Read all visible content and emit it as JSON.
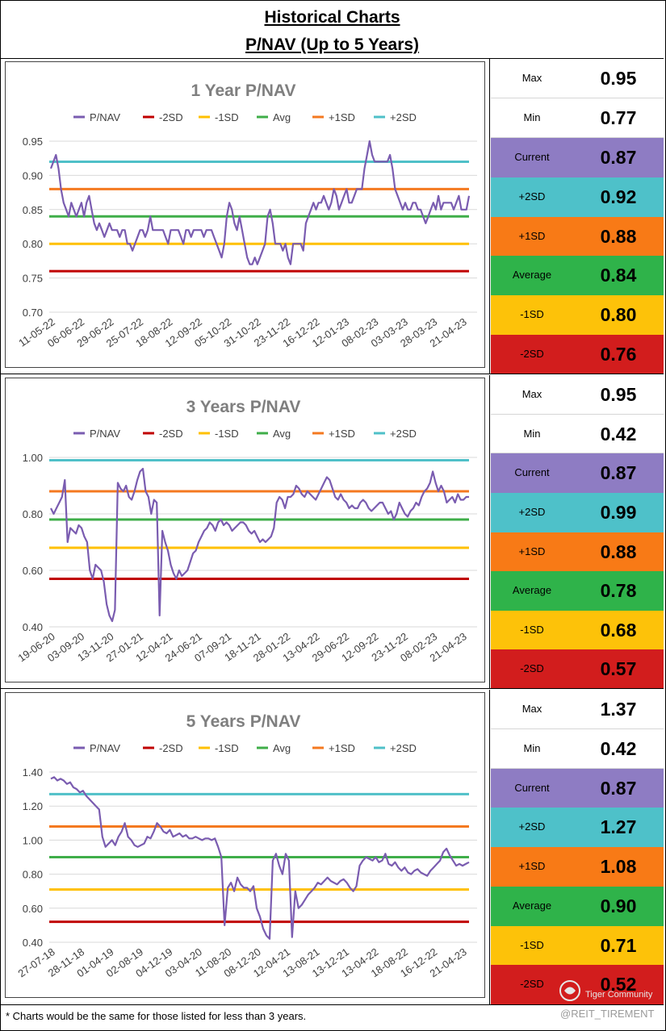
{
  "header": {
    "line1": "Historical Charts",
    "line2": "P/NAV (Up to 5 Years)"
  },
  "legend": [
    "P/NAV",
    "-2SD",
    "-1SD",
    "Avg",
    "+1SD",
    "+2SD"
  ],
  "colors": {
    "pnav": "#7a5cb0",
    "m2sd": "#c00000",
    "m1sd": "#ffc000",
    "avg": "#3fae49",
    "p1sd": "#f47920",
    "p2sd": "#4fc0c8",
    "title": "#7f7f7f",
    "grid": "#d9d9d9"
  },
  "stat_labels": {
    "max": "Max",
    "min": "Min",
    "current": "Current",
    "p2sd": "+2SD",
    "p1sd": "+1SD",
    "avg": "Average",
    "m1sd": "-1SD",
    "m2sd": "-2SD"
  },
  "stat_colors": {
    "current": "#8e7cc3",
    "p2sd": "#4ec1c9",
    "p1sd": "#f87a16",
    "avg": "#2fb34a",
    "m1sd": "#fdc209",
    "m2sd": "#d21d1d"
  },
  "sections": [
    {
      "stats": {
        "max": "0.95",
        "min": "0.77",
        "current": "0.87",
        "p2sd": "0.92",
        "p1sd": "0.88",
        "avg": "0.84",
        "m1sd": "0.80",
        "m2sd": "0.76"
      }
    },
    {
      "stats": {
        "max": "0.95",
        "min": "0.42",
        "current": "0.87",
        "p2sd": "0.99",
        "p1sd": "0.88",
        "avg": "0.78",
        "m1sd": "0.68",
        "m2sd": "0.57"
      }
    },
    {
      "stats": {
        "max": "1.37",
        "min": "0.42",
        "current": "0.87",
        "p2sd": "1.27",
        "p1sd": "1.08",
        "avg": "0.90",
        "m1sd": "0.71",
        "m2sd": "0.52"
      }
    }
  ],
  "chart_data": [
    {
      "type": "line",
      "title": "1 Year P/NAV",
      "ylim": [
        0.7,
        0.95
      ],
      "yticks": [
        "0.70",
        "0.75",
        "0.80",
        "0.85",
        "0.90",
        "0.95"
      ],
      "x_labels": [
        "11-05-22",
        "06-06-22",
        "29-06-22",
        "25-07-22",
        "18-08-22",
        "12-09-22",
        "05-10-22",
        "31-10-22",
        "23-11-22",
        "16-12-22",
        "12-01-23",
        "08-02-23",
        "03-03-23",
        "28-03-23",
        "21-04-23"
      ],
      "bands": {
        "m2sd": 0.76,
        "m1sd": 0.8,
        "avg": 0.84,
        "p1sd": 0.88,
        "p2sd": 0.92
      },
      "legend_position": "top",
      "grid": true,
      "series": [
        {
          "name": "P/NAV",
          "values": [
            0.91,
            0.92,
            0.93,
            0.91,
            0.88,
            0.86,
            0.85,
            0.84,
            0.86,
            0.85,
            0.84,
            0.85,
            0.86,
            0.84,
            0.86,
            0.87,
            0.85,
            0.83,
            0.82,
            0.83,
            0.82,
            0.81,
            0.82,
            0.83,
            0.82,
            0.82,
            0.82,
            0.81,
            0.82,
            0.82,
            0.8,
            0.8,
            0.79,
            0.8,
            0.81,
            0.82,
            0.82,
            0.81,
            0.82,
            0.84,
            0.82,
            0.82,
            0.82,
            0.82,
            0.82,
            0.81,
            0.8,
            0.82,
            0.82,
            0.82,
            0.82,
            0.81,
            0.8,
            0.82,
            0.82,
            0.81,
            0.82,
            0.82,
            0.82,
            0.82,
            0.81,
            0.82,
            0.82,
            0.82,
            0.81,
            0.8,
            0.79,
            0.78,
            0.8,
            0.84,
            0.86,
            0.85,
            0.83,
            0.82,
            0.84,
            0.82,
            0.8,
            0.78,
            0.77,
            0.77,
            0.78,
            0.77,
            0.78,
            0.79,
            0.8,
            0.84,
            0.85,
            0.83,
            0.8,
            0.8,
            0.8,
            0.79,
            0.8,
            0.78,
            0.77,
            0.8,
            0.8,
            0.8,
            0.8,
            0.79,
            0.83,
            0.84,
            0.85,
            0.86,
            0.85,
            0.86,
            0.86,
            0.87,
            0.86,
            0.85,
            0.86,
            0.88,
            0.87,
            0.85,
            0.86,
            0.87,
            0.88,
            0.86,
            0.86,
            0.87,
            0.88,
            0.88,
            0.88,
            0.91,
            0.93,
            0.95,
            0.93,
            0.92,
            0.92,
            0.92,
            0.92,
            0.92,
            0.92,
            0.93,
            0.91,
            0.88,
            0.87,
            0.86,
            0.85,
            0.86,
            0.85,
            0.85,
            0.86,
            0.86,
            0.85,
            0.85,
            0.84,
            0.83,
            0.84,
            0.85,
            0.86,
            0.85,
            0.87,
            0.85,
            0.86,
            0.86,
            0.86,
            0.86,
            0.85,
            0.86,
            0.87,
            0.85,
            0.85,
            0.85,
            0.87
          ]
        }
      ]
    },
    {
      "type": "line",
      "title": "3 Years P/NAV",
      "ylim": [
        0.4,
        1.0
      ],
      "yticks": [
        "0.40",
        "0.60",
        "0.80",
        "1.00"
      ],
      "x_labels": [
        "19-06-20",
        "03-09-20",
        "13-11-20",
        "27-01-21",
        "12-04-21",
        "24-06-21",
        "07-09-21",
        "18-11-21",
        "28-01-22",
        "13-04-22",
        "29-06-22",
        "12-09-22",
        "23-11-22",
        "08-02-23",
        "21-04-23"
      ],
      "bands": {
        "m2sd": 0.57,
        "m1sd": 0.68,
        "avg": 0.78,
        "p1sd": 0.88,
        "p2sd": 0.99
      },
      "legend_position": "top",
      "grid": true,
      "series": [
        {
          "name": "P/NAV",
          "values": [
            0.82,
            0.8,
            0.82,
            0.84,
            0.86,
            0.92,
            0.7,
            0.75,
            0.74,
            0.73,
            0.76,
            0.75,
            0.72,
            0.7,
            0.6,
            0.57,
            0.62,
            0.61,
            0.6,
            0.56,
            0.48,
            0.44,
            0.42,
            0.46,
            0.91,
            0.89,
            0.88,
            0.9,
            0.86,
            0.85,
            0.88,
            0.92,
            0.95,
            0.96,
            0.88,
            0.86,
            0.8,
            0.85,
            0.84,
            0.44,
            0.74,
            0.7,
            0.67,
            0.62,
            0.59,
            0.57,
            0.6,
            0.58,
            0.59,
            0.6,
            0.63,
            0.66,
            0.67,
            0.7,
            0.72,
            0.74,
            0.75,
            0.77,
            0.76,
            0.74,
            0.77,
            0.78,
            0.76,
            0.77,
            0.76,
            0.74,
            0.75,
            0.76,
            0.77,
            0.77,
            0.76,
            0.74,
            0.73,
            0.74,
            0.72,
            0.7,
            0.71,
            0.7,
            0.71,
            0.72,
            0.75,
            0.84,
            0.86,
            0.85,
            0.82,
            0.86,
            0.86,
            0.87,
            0.9,
            0.89,
            0.87,
            0.86,
            0.88,
            0.87,
            0.86,
            0.85,
            0.87,
            0.89,
            0.91,
            0.93,
            0.92,
            0.89,
            0.86,
            0.85,
            0.87,
            0.85,
            0.84,
            0.82,
            0.83,
            0.82,
            0.82,
            0.84,
            0.85,
            0.84,
            0.82,
            0.81,
            0.82,
            0.83,
            0.84,
            0.84,
            0.82,
            0.8,
            0.81,
            0.78,
            0.8,
            0.84,
            0.82,
            0.8,
            0.79,
            0.81,
            0.82,
            0.84,
            0.83,
            0.86,
            0.88,
            0.89,
            0.91,
            0.95,
            0.91,
            0.88,
            0.9,
            0.88,
            0.84,
            0.85,
            0.86,
            0.84,
            0.87,
            0.85,
            0.85,
            0.86,
            0.86
          ]
        }
      ]
    },
    {
      "type": "line",
      "title": "5 Years P/NAV",
      "ylim": [
        0.4,
        1.4
      ],
      "yticks": [
        "0.40",
        "0.60",
        "0.80",
        "1.00",
        "1.20",
        "1.40"
      ],
      "x_labels": [
        "27-07-18",
        "28-11-18",
        "01-04-19",
        "02-08-19",
        "04-12-19",
        "03-04-20",
        "11-08-20",
        "08-12-20",
        "12-04-21",
        "13-08-21",
        "13-12-21",
        "13-04-22",
        "18-08-22",
        "16-12-22",
        "21-04-23"
      ],
      "bands": {
        "m2sd": 0.52,
        "m1sd": 0.71,
        "avg": 0.9,
        "p1sd": 1.08,
        "p2sd": 1.27
      },
      "legend_position": "top",
      "grid": true,
      "series": [
        {
          "name": "P/NAV",
          "values": [
            1.36,
            1.37,
            1.35,
            1.36,
            1.35,
            1.33,
            1.34,
            1.31,
            1.3,
            1.28,
            1.29,
            1.26,
            1.24,
            1.22,
            1.2,
            1.18,
            1.02,
            0.96,
            0.98,
            1.0,
            0.97,
            1.02,
            1.05,
            1.1,
            1.02,
            1.0,
            0.97,
            0.96,
            0.97,
            0.98,
            1.02,
            1.01,
            1.05,
            1.1,
            1.08,
            1.05,
            1.04,
            1.06,
            1.02,
            1.03,
            1.04,
            1.02,
            1.03,
            1.01,
            1.01,
            1.02,
            1.01,
            1.0,
            1.01,
            1.01,
            1.0,
            1.01,
            0.96,
            0.9,
            0.5,
            0.72,
            0.75,
            0.7,
            0.78,
            0.74,
            0.72,
            0.72,
            0.7,
            0.73,
            0.6,
            0.55,
            0.48,
            0.44,
            0.42,
            0.88,
            0.92,
            0.85,
            0.8,
            0.92,
            0.88,
            0.43,
            0.7,
            0.6,
            0.62,
            0.65,
            0.68,
            0.7,
            0.72,
            0.75,
            0.74,
            0.76,
            0.78,
            0.76,
            0.75,
            0.74,
            0.76,
            0.77,
            0.75,
            0.72,
            0.7,
            0.73,
            0.85,
            0.88,
            0.9,
            0.89,
            0.88,
            0.9,
            0.87,
            0.88,
            0.92,
            0.86,
            0.85,
            0.87,
            0.84,
            0.82,
            0.84,
            0.81,
            0.8,
            0.82,
            0.83,
            0.81,
            0.8,
            0.79,
            0.82,
            0.84,
            0.86,
            0.88,
            0.93,
            0.95,
            0.91,
            0.88,
            0.85,
            0.86,
            0.85,
            0.86,
            0.87
          ]
        }
      ]
    }
  ],
  "footnote": "* Charts would be the same for those listed for less than 3 years.",
  "brand": "Tiger Community",
  "watermark": "@REIT_TIREMENT"
}
